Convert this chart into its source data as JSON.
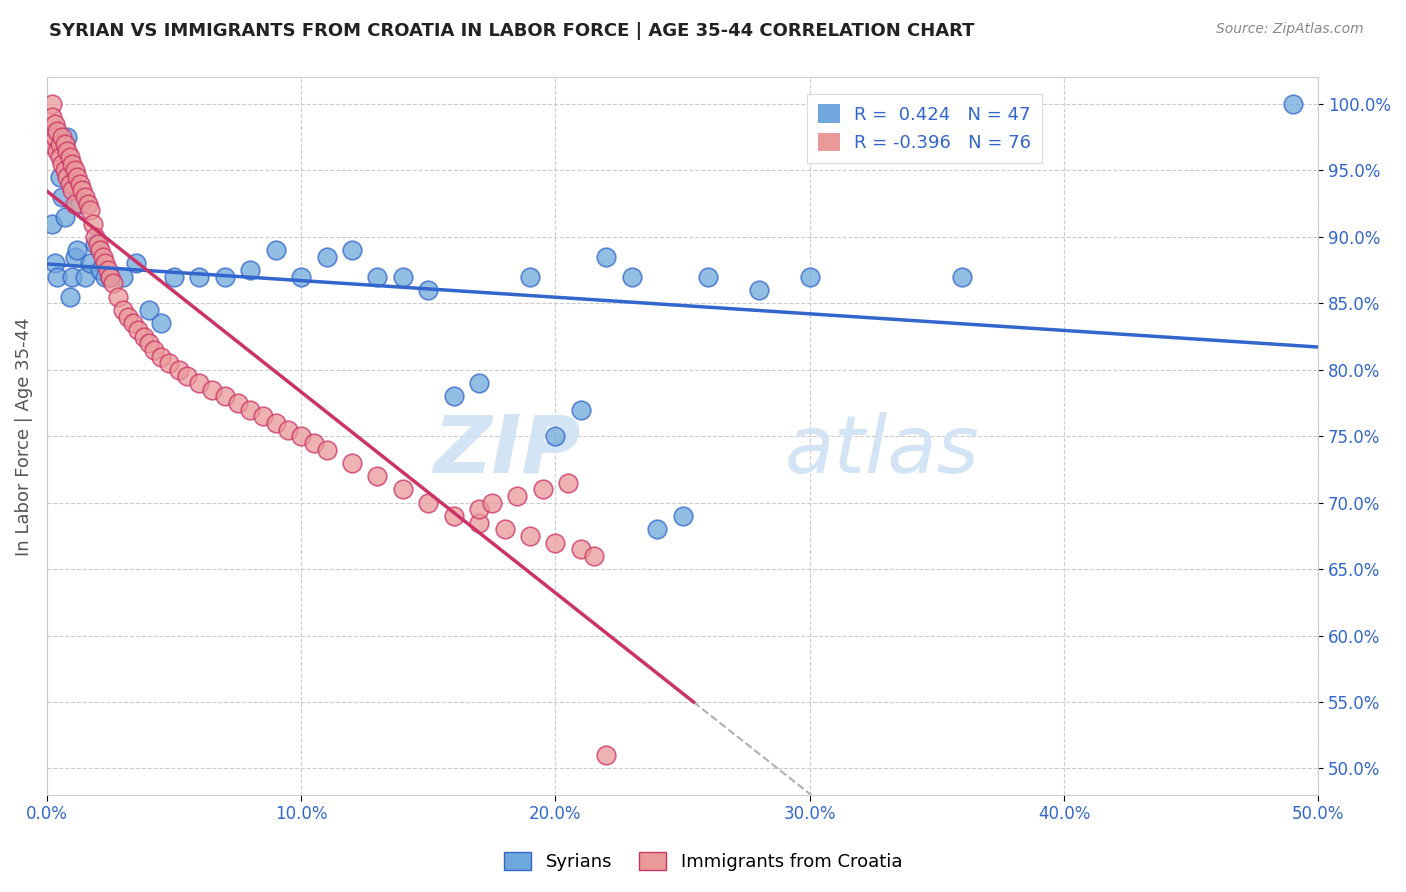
{
  "title": "SYRIAN VS IMMIGRANTS FROM CROATIA IN LABOR FORCE | AGE 35-44 CORRELATION CHART",
  "source": "Source: ZipAtlas.com",
  "ylabel": "In Labor Force | Age 35-44",
  "xlim": [
    0.0,
    0.5
  ],
  "ylim": [
    0.48,
    1.02
  ],
  "xtick_labels": [
    "0.0%",
    "10.0%",
    "20.0%",
    "30.0%",
    "40.0%",
    "50.0%"
  ],
  "xtick_vals": [
    0.0,
    0.1,
    0.2,
    0.3,
    0.4,
    0.5
  ],
  "ytick_labels": [
    "50.0%",
    "55.0%",
    "60.0%",
    "65.0%",
    "70.0%",
    "75.0%",
    "80.0%",
    "85.0%",
    "90.0%",
    "95.0%",
    "100.0%"
  ],
  "ytick_vals": [
    0.5,
    0.55,
    0.6,
    0.65,
    0.7,
    0.75,
    0.8,
    0.85,
    0.9,
    0.95,
    1.0
  ],
  "blue_R": 0.424,
  "blue_N": 47,
  "pink_R": -0.396,
  "pink_N": 76,
  "blue_color": "#6fa8dc",
  "pink_color": "#ea9999",
  "blue_line_color": "#3366cc",
  "pink_line_color": "#cc3366",
  "pink_dash_color": "#b0b0b0",
  "grid_color": "#cccccc",
  "watermark_zip": "ZIP",
  "watermark_atlas": "atlas",
  "legend_labels": [
    "Syrians",
    "Immigrants from Croatia"
  ],
  "blue_scatter_x": [
    0.002,
    0.003,
    0.004,
    0.005,
    0.006,
    0.007,
    0.008,
    0.009,
    0.01,
    0.011,
    0.012,
    0.013,
    0.015,
    0.017,
    0.019,
    0.021,
    0.023,
    0.025,
    0.03,
    0.035,
    0.04,
    0.045,
    0.05,
    0.06,
    0.07,
    0.08,
    0.09,
    0.1,
    0.11,
    0.12,
    0.13,
    0.14,
    0.15,
    0.16,
    0.17,
    0.19,
    0.2,
    0.21,
    0.22,
    0.23,
    0.24,
    0.25,
    0.26,
    0.28,
    0.3,
    0.36,
    0.49
  ],
  "blue_scatter_y": [
    0.91,
    0.88,
    0.87,
    0.945,
    0.93,
    0.915,
    0.975,
    0.855,
    0.87,
    0.885,
    0.89,
    0.925,
    0.87,
    0.88,
    0.895,
    0.875,
    0.87,
    0.87,
    0.87,
    0.88,
    0.845,
    0.835,
    0.87,
    0.87,
    0.87,
    0.875,
    0.89,
    0.87,
    0.885,
    0.89,
    0.87,
    0.87,
    0.86,
    0.78,
    0.79,
    0.87,
    0.75,
    0.77,
    0.885,
    0.87,
    0.68,
    0.69,
    0.87,
    0.86,
    0.87,
    0.87,
    1.0
  ],
  "pink_scatter_x": [
    0.001,
    0.002,
    0.002,
    0.003,
    0.003,
    0.004,
    0.004,
    0.005,
    0.005,
    0.006,
    0.006,
    0.007,
    0.007,
    0.008,
    0.008,
    0.009,
    0.009,
    0.01,
    0.01,
    0.011,
    0.011,
    0.012,
    0.013,
    0.014,
    0.015,
    0.016,
    0.017,
    0.018,
    0.019,
    0.02,
    0.021,
    0.022,
    0.023,
    0.024,
    0.025,
    0.026,
    0.028,
    0.03,
    0.032,
    0.034,
    0.036,
    0.038,
    0.04,
    0.042,
    0.045,
    0.048,
    0.052,
    0.055,
    0.06,
    0.065,
    0.07,
    0.075,
    0.08,
    0.085,
    0.09,
    0.095,
    0.1,
    0.105,
    0.11,
    0.12,
    0.13,
    0.14,
    0.15,
    0.16,
    0.17,
    0.18,
    0.19,
    0.2,
    0.21,
    0.215,
    0.17,
    0.175,
    0.185,
    0.195,
    0.205,
    0.22
  ],
  "pink_scatter_y": [
    0.97,
    1.0,
    0.99,
    0.985,
    0.975,
    0.98,
    0.965,
    0.97,
    0.96,
    0.975,
    0.955,
    0.97,
    0.95,
    0.965,
    0.945,
    0.96,
    0.94,
    0.955,
    0.935,
    0.95,
    0.925,
    0.945,
    0.94,
    0.935,
    0.93,
    0.925,
    0.92,
    0.91,
    0.9,
    0.895,
    0.89,
    0.885,
    0.88,
    0.875,
    0.87,
    0.865,
    0.855,
    0.845,
    0.84,
    0.835,
    0.83,
    0.825,
    0.82,
    0.815,
    0.81,
    0.805,
    0.8,
    0.795,
    0.79,
    0.785,
    0.78,
    0.775,
    0.77,
    0.765,
    0.76,
    0.755,
    0.75,
    0.745,
    0.74,
    0.73,
    0.72,
    0.71,
    0.7,
    0.69,
    0.685,
    0.68,
    0.675,
    0.67,
    0.665,
    0.66,
    0.695,
    0.7,
    0.705,
    0.71,
    0.715,
    0.51
  ]
}
